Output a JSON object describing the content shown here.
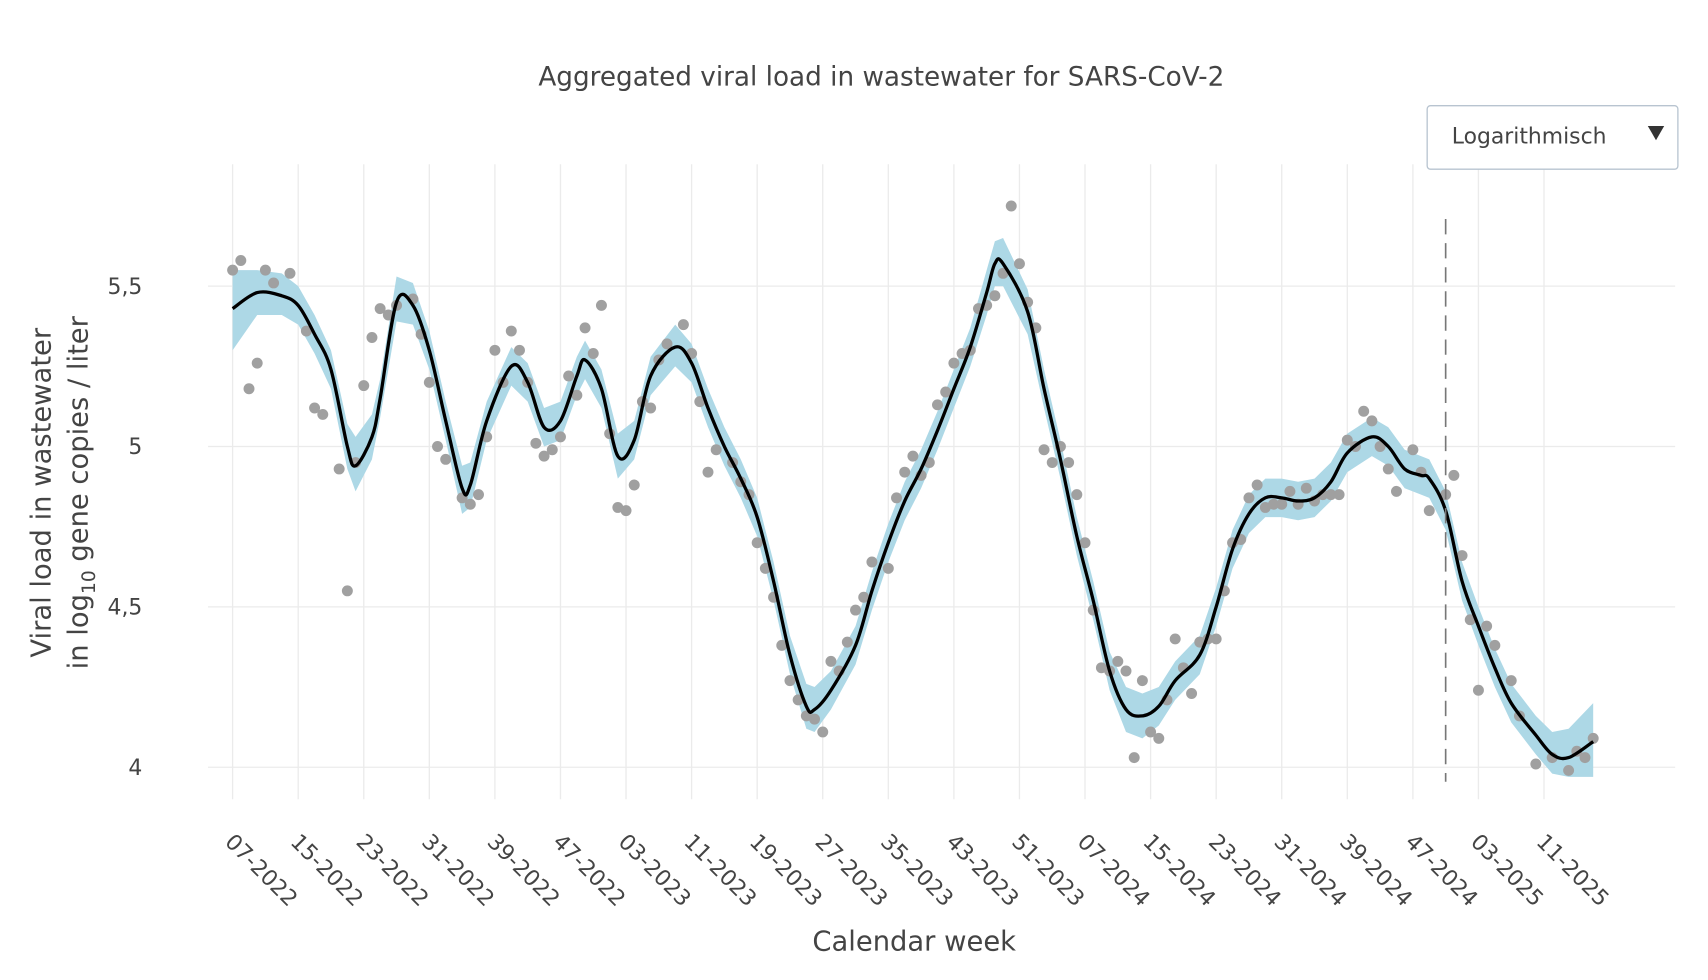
{
  "chart_data": {
    "type": "line",
    "title": "Aggregated viral load in wastewater for SARS-CoV-2",
    "x_label": "Calendar week",
    "y_label": {
      "line1": "Viral load in wastewater",
      "line2_pre": "in log",
      "subscript": "10",
      "line2_post": " gene copies / liter"
    },
    "xlim": [
      -3,
      176
    ],
    "ylim": [
      3.9,
      5.88
    ],
    "xticks": [
      {
        "value": 0,
        "label": "07-2022"
      },
      {
        "value": 8,
        "label": "15-2022"
      },
      {
        "value": 16,
        "label": "23-2022"
      },
      {
        "value": 24,
        "label": "31-2022"
      },
      {
        "value": 32,
        "label": "39-2022"
      },
      {
        "value": 40,
        "label": "47-2022"
      },
      {
        "value": 48,
        "label": "03-2023"
      },
      {
        "value": 56,
        "label": "11-2023"
      },
      {
        "value": 64,
        "label": "19-2023"
      },
      {
        "value": 72,
        "label": "27-2023"
      },
      {
        "value": 80,
        "label": "35-2023"
      },
      {
        "value": 88,
        "label": "43-2023"
      },
      {
        "value": 96,
        "label": "51-2023"
      },
      {
        "value": 104,
        "label": "07-2024"
      },
      {
        "value": 112,
        "label": "15-2024"
      },
      {
        "value": 120,
        "label": "23-2024"
      },
      {
        "value": 128,
        "label": "31-2024"
      },
      {
        "value": 136,
        "label": "39-2024"
      },
      {
        "value": 144,
        "label": "47-2024"
      },
      {
        "value": 152,
        "label": "03-2025"
      },
      {
        "value": 160,
        "label": "11-2025"
      }
    ],
    "yticks": [
      4,
      {
        "value": 4.5,
        "label": "4,5"
      },
      5,
      {
        "value": 5.5,
        "label": "5,5"
      }
    ],
    "grid": true,
    "vline_x": 148,
    "line": {
      "color": "#000000",
      "band_color": "#add8e6",
      "x": [
        0,
        3,
        6,
        8,
        10,
        12,
        14,
        15,
        17,
        18,
        20,
        22,
        24,
        26,
        28,
        29,
        31,
        34,
        36,
        38,
        40,
        42,
        43,
        45,
        47,
        49,
        51,
        54,
        56,
        58,
        60,
        62,
        64,
        66,
        68,
        70,
        71,
        73,
        76,
        78,
        80,
        82,
        84,
        86,
        88,
        90,
        92,
        93,
        94,
        97,
        99,
        101,
        103,
        105,
        107,
        109,
        111,
        113,
        115,
        118,
        120,
        122,
        124,
        126,
        128,
        130,
        132,
        134,
        136,
        139,
        141,
        143,
        145,
        146,
        148,
        150,
        152,
        154,
        156,
        159,
        161,
        163,
        166
      ],
      "values": [
        5.43,
        5.48,
        5.47,
        5.44,
        5.35,
        5.24,
        5.0,
        4.94,
        5.03,
        5.15,
        5.45,
        5.44,
        5.3,
        5.08,
        4.87,
        4.88,
        5.08,
        5.25,
        5.2,
        5.06,
        5.08,
        5.22,
        5.27,
        5.18,
        4.97,
        5.02,
        5.22,
        5.31,
        5.26,
        5.12,
        5.0,
        4.9,
        4.78,
        4.58,
        4.35,
        4.19,
        4.18,
        4.24,
        4.38,
        4.55,
        4.7,
        4.83,
        4.93,
        5.05,
        5.18,
        5.31,
        5.48,
        5.57,
        5.57,
        5.42,
        5.18,
        4.96,
        4.72,
        4.52,
        4.3,
        4.18,
        4.16,
        4.19,
        4.27,
        4.35,
        4.5,
        4.68,
        4.79,
        4.84,
        4.84,
        4.83,
        4.84,
        4.89,
        4.98,
        5.03,
        5.0,
        4.93,
        4.91,
        4.9,
        4.8,
        4.58,
        4.44,
        4.31,
        4.2,
        4.1,
        4.04,
        4.03,
        4.08
      ],
      "lower": [
        5.3,
        5.41,
        5.41,
        5.38,
        5.29,
        5.18,
        4.93,
        4.86,
        4.96,
        5.09,
        5.39,
        5.38,
        5.24,
        5.02,
        4.79,
        4.81,
        5.02,
        5.19,
        5.14,
        5.0,
        5.02,
        5.16,
        5.21,
        5.12,
        4.9,
        4.96,
        5.16,
        5.25,
        5.2,
        5.06,
        4.94,
        4.84,
        4.72,
        4.52,
        4.29,
        4.12,
        4.11,
        4.18,
        4.32,
        4.49,
        4.64,
        4.77,
        4.87,
        4.99,
        5.12,
        5.25,
        5.41,
        5.5,
        5.5,
        5.35,
        5.12,
        4.9,
        4.66,
        4.46,
        4.24,
        4.11,
        4.09,
        4.13,
        4.21,
        4.29,
        4.44,
        4.62,
        4.73,
        4.78,
        4.78,
        4.77,
        4.78,
        4.83,
        4.92,
        4.97,
        4.94,
        4.87,
        4.85,
        4.84,
        4.74,
        4.52,
        4.38,
        4.25,
        4.14,
        4.04,
        3.98,
        3.97,
        3.97
      ],
      "upper": [
        5.55,
        5.55,
        5.54,
        5.5,
        5.41,
        5.3,
        5.07,
        5.03,
        5.1,
        5.21,
        5.53,
        5.51,
        5.36,
        5.14,
        4.94,
        4.95,
        5.14,
        5.31,
        5.26,
        5.12,
        5.14,
        5.28,
        5.33,
        5.24,
        5.04,
        5.08,
        5.28,
        5.38,
        5.32,
        5.18,
        5.06,
        4.96,
        4.84,
        4.64,
        4.41,
        4.26,
        4.25,
        4.3,
        4.44,
        4.61,
        4.76,
        4.89,
        4.99,
        5.11,
        5.24,
        5.37,
        5.55,
        5.64,
        5.65,
        5.49,
        5.24,
        5.02,
        4.78,
        4.58,
        4.36,
        4.25,
        4.23,
        4.25,
        4.33,
        4.41,
        4.56,
        4.74,
        4.85,
        4.9,
        4.9,
        4.89,
        4.9,
        4.95,
        5.04,
        5.09,
        5.06,
        4.99,
        4.97,
        4.96,
        4.86,
        4.64,
        4.5,
        4.37,
        4.26,
        4.16,
        4.11,
        4.12,
        4.2
      ]
    },
    "points": {
      "color": "#a0a0a0",
      "x": [
        0,
        1,
        2,
        3,
        4,
        5,
        7,
        9,
        10,
        11,
        13,
        14,
        15,
        16,
        17,
        18,
        19,
        20,
        22,
        23,
        24,
        25,
        26,
        28,
        29,
        30,
        31,
        32,
        33,
        34,
        35,
        36,
        37,
        38,
        39,
        40,
        41,
        42,
        43,
        44,
        45,
        46,
        47,
        48,
        49,
        50,
        51,
        52,
        53,
        55,
        56,
        57,
        58,
        59,
        61,
        62,
        63,
        64,
        65,
        66,
        67,
        68,
        69,
        70,
        71,
        72,
        73,
        74,
        75,
        76,
        77,
        78,
        80,
        81,
        82,
        83,
        84,
        85,
        86,
        87,
        88,
        89,
        90,
        91,
        92,
        93,
        94,
        95,
        96,
        97,
        98,
        99,
        100,
        101,
        102,
        103,
        104,
        105,
        106,
        107,
        108,
        109,
        110,
        111,
        112,
        113,
        114,
        115,
        116,
        117,
        118,
        119,
        120,
        121,
        122,
        123,
        124,
        125,
        126,
        127,
        128,
        129,
        130,
        131,
        132,
        133,
        134,
        135,
        136,
        137,
        138,
        139,
        140,
        141,
        142,
        144,
        145,
        146,
        148,
        149,
        150,
        151,
        152,
        153,
        154,
        156,
        157,
        159,
        161,
        163,
        164,
        165,
        166
      ],
      "values": [
        5.55,
        5.58,
        5.18,
        5.26,
        5.55,
        5.51,
        5.54,
        5.36,
        5.12,
        5.1,
        4.93,
        4.55,
        4.95,
        5.19,
        5.34,
        5.43,
        5.41,
        5.44,
        5.46,
        5.35,
        5.2,
        5.0,
        4.96,
        4.84,
        4.82,
        4.85,
        5.03,
        5.3,
        5.2,
        5.36,
        5.3,
        5.2,
        5.01,
        4.97,
        4.99,
        5.03,
        5.22,
        5.16,
        5.37,
        5.29,
        5.44,
        5.04,
        4.81,
        4.8,
        4.88,
        5.14,
        5.12,
        5.27,
        5.32,
        5.38,
        5.29,
        5.14,
        4.92,
        4.99,
        4.95,
        4.89,
        4.85,
        4.7,
        4.62,
        4.53,
        4.38,
        4.27,
        4.21,
        4.16,
        4.15,
        4.11,
        4.33,
        4.3,
        4.39,
        4.49,
        4.53,
        4.64,
        4.62,
        4.84,
        4.92,
        4.97,
        4.91,
        4.95,
        5.13,
        5.17,
        5.26,
        5.29,
        5.3,
        5.43,
        5.44,
        5.47,
        5.54,
        5.75,
        5.57,
        5.45,
        5.37,
        4.99,
        4.95,
        5.0,
        4.95,
        4.85,
        4.7,
        4.49,
        4.31,
        4.3,
        4.33,
        4.3,
        4.03,
        4.27,
        4.11,
        4.09,
        4.21,
        4.4,
        4.31,
        4.23,
        4.39,
        4.4,
        4.4,
        4.55,
        4.7,
        4.71,
        4.84,
        4.88,
        4.81,
        4.82,
        4.82,
        4.86,
        4.82,
        4.87,
        4.83,
        4.85,
        4.85,
        4.85,
        5.02,
        5.0,
        5.11,
        5.08,
        5.0,
        4.93,
        4.86,
        4.99,
        4.92,
        4.8,
        4.85,
        4.91,
        4.66,
        4.46,
        4.24,
        4.44,
        4.38,
        4.27,
        4.16,
        4.01,
        4.03,
        3.99,
        4.05,
        4.03,
        4.09
      ]
    }
  },
  "controls": {
    "scale_dropdown": "Logarithmisch"
  }
}
